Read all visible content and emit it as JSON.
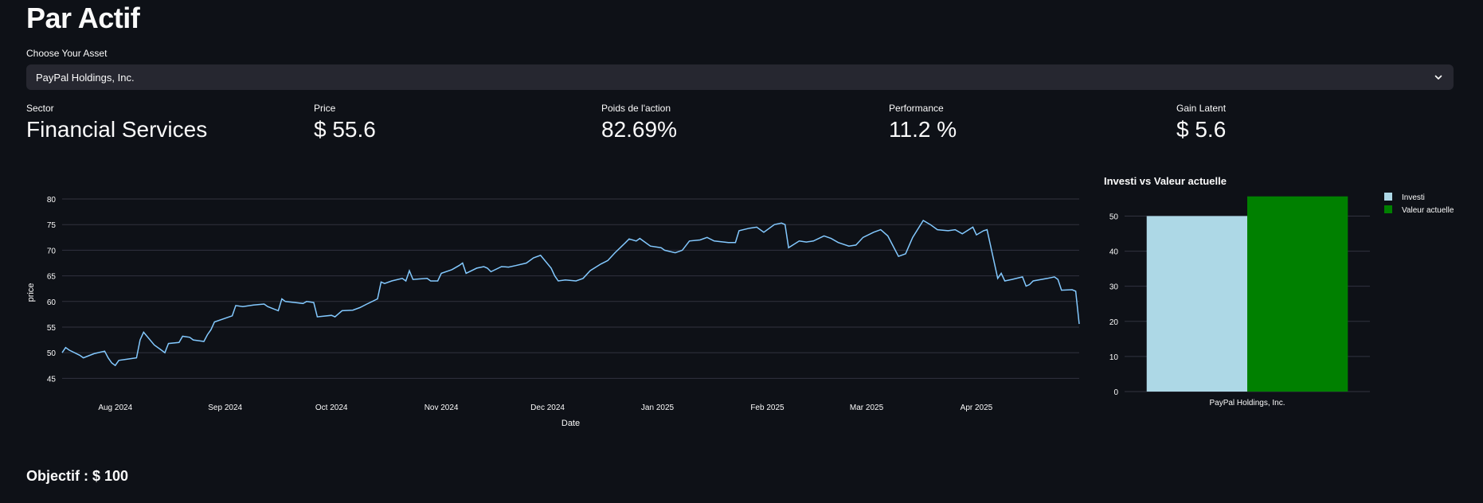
{
  "page": {
    "title": "Par Actif"
  },
  "asset_select": {
    "label": "Choose Your Asset",
    "value": "PayPal Holdings, Inc."
  },
  "metrics": [
    {
      "label": "Sector",
      "value": "Financial Services"
    },
    {
      "label": "Price",
      "value": "$ 55.6"
    },
    {
      "label": "Poids de l'action",
      "value": "82.69%"
    },
    {
      "label": "Performance",
      "value": "11.2 %"
    },
    {
      "label": "Gain Latent",
      "value": "$ 5.6"
    }
  ],
  "objective": {
    "label": "Objectif : $ 100"
  },
  "icons": {
    "dropdown": "chevron-down-icon"
  },
  "colors": {
    "line": "#83c9ff",
    "investi": "#add8e6",
    "valeur": "#008000",
    "bg": "#0e1117"
  },
  "chart_data": [
    {
      "type": "line",
      "title": "",
      "xlabel": "Date",
      "ylabel": "price",
      "ylim": [
        43.5,
        80
      ],
      "yticks": [
        45,
        50,
        55,
        60,
        65,
        70,
        75,
        80
      ],
      "xticks": [
        {
          "date": "2024-08-01",
          "label": "Aug 2024"
        },
        {
          "date": "2024-09-01",
          "label": "Sep 2024"
        },
        {
          "date": "2024-10-01",
          "label": "Oct 2024"
        },
        {
          "date": "2024-11-01",
          "label": "Nov 2024"
        },
        {
          "date": "2024-12-01",
          "label": "Dec 2024"
        },
        {
          "date": "2025-01-01",
          "label": "Jan 2025"
        },
        {
          "date": "2025-02-01",
          "label": "Feb 2025"
        },
        {
          "date": "2025-03-01",
          "label": "Mar 2025"
        },
        {
          "date": "2025-04-01",
          "label": "Apr 2025"
        }
      ],
      "xlim": [
        "2024-07-17",
        "2025-04-30"
      ],
      "series": [
        {
          "points": [
            [
              "2024-07-17",
              50.0
            ],
            [
              "2024-07-18",
              51.0
            ],
            [
              "2024-07-19",
              50.5
            ],
            [
              "2024-07-22",
              49.5
            ],
            [
              "2024-07-23",
              49.0
            ],
            [
              "2024-07-26",
              49.8
            ],
            [
              "2024-07-29",
              50.3
            ],
            [
              "2024-07-30",
              49.0
            ],
            [
              "2024-07-31",
              48.0
            ],
            [
              "2024-08-01",
              47.5
            ],
            [
              "2024-08-02",
              48.5
            ],
            [
              "2024-08-05",
              48.8
            ],
            [
              "2024-08-07",
              49.0
            ],
            [
              "2024-08-08",
              52.5
            ],
            [
              "2024-08-09",
              54.0
            ],
            [
              "2024-08-12",
              51.5
            ],
            [
              "2024-08-14",
              50.5
            ],
            [
              "2024-08-15",
              50.0
            ],
            [
              "2024-08-16",
              51.8
            ],
            [
              "2024-08-19",
              52.0
            ],
            [
              "2024-08-20",
              53.2
            ],
            [
              "2024-08-22",
              53.0
            ],
            [
              "2024-08-23",
              52.5
            ],
            [
              "2024-08-26",
              52.2
            ],
            [
              "2024-08-27",
              53.5
            ],
            [
              "2024-08-28",
              54.5
            ],
            [
              "2024-08-29",
              56.0
            ],
            [
              "2024-09-03",
              57.2
            ],
            [
              "2024-09-04",
              59.2
            ],
            [
              "2024-09-06",
              59.0
            ],
            [
              "2024-09-09",
              59.3
            ],
            [
              "2024-09-12",
              59.5
            ],
            [
              "2024-09-13",
              59.0
            ],
            [
              "2024-09-16",
              58.2
            ],
            [
              "2024-09-17",
              60.5
            ],
            [
              "2024-09-18",
              60.0
            ],
            [
              "2024-09-23",
              59.6
            ],
            [
              "2024-09-24",
              60.0
            ],
            [
              "2024-09-26",
              59.8
            ],
            [
              "2024-09-27",
              57.0
            ],
            [
              "2024-10-01",
              57.3
            ],
            [
              "2024-10-02",
              57.0
            ],
            [
              "2024-10-03",
              57.6
            ],
            [
              "2024-10-04",
              58.2
            ],
            [
              "2024-10-07",
              58.3
            ],
            [
              "2024-10-09",
              58.8
            ],
            [
              "2024-10-11",
              59.5
            ],
            [
              "2024-10-14",
              60.5
            ],
            [
              "2024-10-15",
              63.8
            ],
            [
              "2024-10-16",
              63.5
            ],
            [
              "2024-10-18",
              64.0
            ],
            [
              "2024-10-21",
              64.5
            ],
            [
              "2024-10-22",
              64.0
            ],
            [
              "2024-10-23",
              66.0
            ],
            [
              "2024-10-24",
              64.3
            ],
            [
              "2024-10-28",
              64.5
            ],
            [
              "2024-10-29",
              64.0
            ],
            [
              "2024-10-31",
              64.0
            ],
            [
              "2024-11-01",
              65.5
            ],
            [
              "2024-11-04",
              66.2
            ],
            [
              "2024-11-06",
              67.0
            ],
            [
              "2024-11-07",
              67.5
            ],
            [
              "2024-11-08",
              65.5
            ],
            [
              "2024-11-11",
              66.5
            ],
            [
              "2024-11-13",
              66.8
            ],
            [
              "2024-11-14",
              66.5
            ],
            [
              "2024-11-15",
              65.8
            ],
            [
              "2024-11-18",
              66.8
            ],
            [
              "2024-11-20",
              66.7
            ],
            [
              "2024-11-22",
              67.0
            ],
            [
              "2024-11-25",
              67.5
            ],
            [
              "2024-11-27",
              68.5
            ],
            [
              "2024-11-29",
              69.0
            ],
            [
              "2024-12-02",
              66.5
            ],
            [
              "2024-12-03",
              65.0
            ],
            [
              "2024-12-04",
              64.0
            ],
            [
              "2024-12-06",
              64.2
            ],
            [
              "2024-12-09",
              64.0
            ],
            [
              "2024-12-11",
              64.5
            ],
            [
              "2024-12-13",
              66.0
            ],
            [
              "2024-12-16",
              67.3
            ],
            [
              "2024-12-18",
              68.0
            ],
            [
              "2024-12-20",
              69.5
            ],
            [
              "2024-12-23",
              71.5
            ],
            [
              "2024-12-24",
              72.2
            ],
            [
              "2024-12-26",
              71.8
            ],
            [
              "2024-12-27",
              72.3
            ],
            [
              "2024-12-30",
              70.8
            ],
            [
              "2025-01-02",
              70.5
            ],
            [
              "2025-01-03",
              70.0
            ],
            [
              "2025-01-06",
              69.5
            ],
            [
              "2025-01-08",
              70.0
            ],
            [
              "2025-01-10",
              71.8
            ],
            [
              "2025-01-13",
              72.0
            ],
            [
              "2025-01-15",
              72.5
            ],
            [
              "2025-01-17",
              71.8
            ],
            [
              "2025-01-21",
              71.5
            ],
            [
              "2025-01-23",
              71.5
            ],
            [
              "2025-01-24",
              73.8
            ],
            [
              "2025-01-27",
              74.3
            ],
            [
              "2025-01-29",
              74.5
            ],
            [
              "2025-01-31",
              73.5
            ],
            [
              "2025-02-03",
              75.0
            ],
            [
              "2025-02-05",
              75.3
            ],
            [
              "2025-02-06",
              75.0
            ],
            [
              "2025-02-07",
              70.5
            ],
            [
              "2025-02-10",
              71.8
            ],
            [
              "2025-02-12",
              71.6
            ],
            [
              "2025-02-14",
              71.8
            ],
            [
              "2025-02-17",
              72.8
            ],
            [
              "2025-02-19",
              72.3
            ],
            [
              "2025-02-21",
              71.5
            ],
            [
              "2025-02-24",
              70.8
            ],
            [
              "2025-02-26",
              71.0
            ],
            [
              "2025-02-28",
              72.5
            ],
            [
              "2025-03-03",
              73.5
            ],
            [
              "2025-03-05",
              74.0
            ],
            [
              "2025-03-07",
              72.8
            ],
            [
              "2025-03-10",
              68.8
            ],
            [
              "2025-03-12",
              69.3
            ],
            [
              "2025-03-14",
              72.5
            ],
            [
              "2025-03-17",
              75.8
            ],
            [
              "2025-03-19",
              75.0
            ],
            [
              "2025-03-21",
              74.0
            ],
            [
              "2025-03-24",
              73.8
            ],
            [
              "2025-03-26",
              74.0
            ],
            [
              "2025-03-28",
              73.2
            ],
            [
              "2025-03-31",
              74.5
            ],
            [
              "2025-04-01",
              73.0
            ],
            [
              "2025-04-03",
              73.8
            ],
            [
              "2025-04-04",
              74.0
            ],
            [
              "2025-04-07",
              64.5
            ],
            [
              "2025-04-08",
              65.5
            ],
            [
              "2025-04-09",
              64.0
            ],
            [
              "2025-04-11",
              64.3
            ],
            [
              "2025-04-14",
              64.8
            ],
            [
              "2025-04-15",
              63.0
            ],
            [
              "2025-04-16",
              63.3
            ],
            [
              "2025-04-17",
              64.0
            ],
            [
              "2025-04-21",
              64.5
            ],
            [
              "2025-04-23",
              64.8
            ],
            [
              "2025-04-24",
              64.3
            ],
            [
              "2025-04-25",
              62.2
            ],
            [
              "2025-04-28",
              62.3
            ],
            [
              "2025-04-29",
              62.0
            ],
            [
              "2025-04-30",
              55.6
            ]
          ]
        }
      ]
    },
    {
      "type": "bar",
      "title": "Investi vs Valeur actuelle",
      "categories": [
        "PayPal Holdings, Inc."
      ],
      "series": [
        {
          "name": "Investi",
          "values": [
            50
          ],
          "color": "#add8e6"
        },
        {
          "name": "Valeur actuelle",
          "values": [
            55.6
          ],
          "color": "#008000"
        }
      ],
      "ylim": [
        0,
        56
      ],
      "yticks": [
        0,
        10,
        20,
        30,
        40,
        50
      ],
      "legend": "top-right"
    }
  ]
}
